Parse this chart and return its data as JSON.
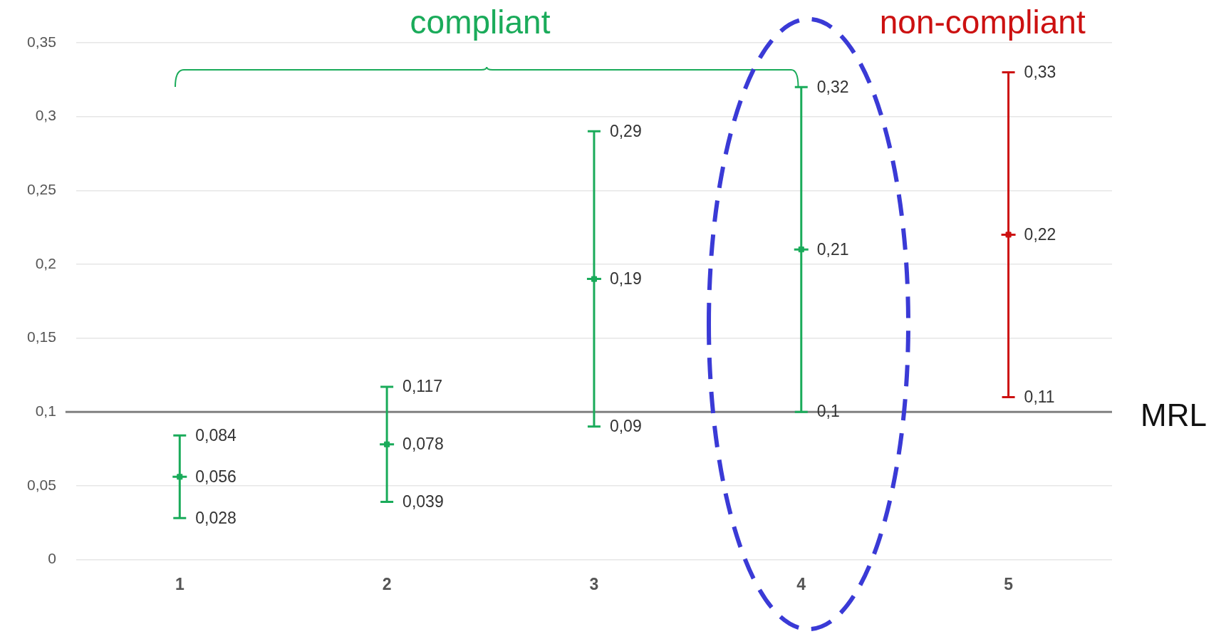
{
  "chart_data": {
    "type": "scatter",
    "categories": [
      "1",
      "2",
      "3",
      "4",
      "5"
    ],
    "values": [
      0.056,
      0.078,
      0.19,
      0.21,
      0.22
    ],
    "errors": [
      [
        0.028,
        0.084
      ],
      [
        0.039,
        0.117
      ],
      [
        0.09,
        0.29
      ],
      [
        0.1,
        0.32
      ],
      [
        0.11,
        0.33
      ]
    ],
    "colors": [
      "#1aab5a",
      "#1aab5a",
      "#1aab5a",
      "#1aab5a",
      "#cc1111"
    ],
    "ylim": [
      0,
      0.35
    ],
    "yticks": [
      {
        "value": 0,
        "label": "0"
      },
      {
        "value": 0.05,
        "label": "0,05"
      },
      {
        "value": 0.1,
        "label": "0,1"
      },
      {
        "value": 0.15,
        "label": "0,15"
      },
      {
        "value": 0.2,
        "label": "0,2"
      },
      {
        "value": 0.25,
        "label": "0,25"
      },
      {
        "value": 0.3,
        "label": "0,3"
      },
      {
        "value": 0.35,
        "label": "0,35"
      }
    ],
    "grid": "y",
    "marker": "square",
    "ref_lines": [
      {
        "axis": "y",
        "value": 0.1,
        "label": "MRL",
        "color": "#808080"
      }
    ],
    "annotations": [
      "compliant",
      "non-compliant",
      {
        "text": "0,084",
        "x": "1",
        "y": 0.084
      },
      {
        "text": "0,056",
        "x": "1",
        "y": 0.056
      },
      {
        "text": "0,028",
        "x": "1",
        "y": 0.028
      },
      {
        "text": "0,117",
        "x": "2",
        "y": 0.117
      },
      {
        "text": "0,078",
        "x": "2",
        "y": 0.078
      },
      {
        "text": "0,039",
        "x": "2",
        "y": 0.039
      },
      {
        "text": "0,29",
        "x": "3",
        "y": 0.29
      },
      {
        "text": "0,19",
        "x": "3",
        "y": 0.19
      },
      {
        "text": "0,09",
        "x": "3",
        "y": 0.09
      },
      {
        "text": "0,32",
        "x": "4",
        "y": 0.32
      },
      {
        "text": "0,21",
        "x": "4",
        "y": 0.21
      },
      {
        "text": "0,1",
        "x": "4",
        "y": 0.1
      },
      {
        "text": "0,33",
        "x": "5",
        "y": 0.33
      },
      {
        "text": "0,22",
        "x": "5",
        "y": 0.22
      },
      {
        "text": "0,11",
        "x": "5",
        "y": 0.11
      }
    ]
  }
}
